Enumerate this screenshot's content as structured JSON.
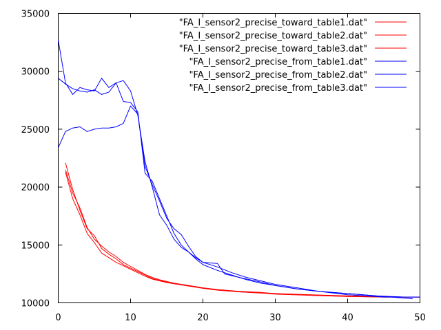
{
  "chart_data": {
    "type": "line",
    "title": "",
    "xlabel": "",
    "ylabel": "",
    "xlim": [
      0,
      50
    ],
    "ylim": [
      10000,
      35000
    ],
    "x_ticks": [
      "0",
      "10",
      "20",
      "30",
      "40",
      "50"
    ],
    "y_ticks": [
      "10000",
      "15000",
      "20000",
      "25000",
      "30000",
      "35000"
    ],
    "grid": false,
    "legend_position": "top-right",
    "colors": {
      "toward": "#ff0000",
      "from": "#0000ff"
    },
    "series": [
      {
        "name": "\"FA_I_sensor2_precise_toward_table1.dat\"",
        "color": "#ff0000",
        "points": [
          [
            1,
            22100
          ],
          [
            2,
            19800
          ],
          [
            3,
            18000
          ],
          [
            4,
            16400
          ],
          [
            5,
            15800
          ],
          [
            6,
            14700
          ],
          [
            7,
            14200
          ],
          [
            8,
            13800
          ],
          [
            9,
            13300
          ],
          [
            10,
            13000
          ],
          [
            11,
            12700
          ],
          [
            12,
            12400
          ],
          [
            13,
            12100
          ],
          [
            14,
            11950
          ],
          [
            15,
            11800
          ],
          [
            16,
            11700
          ],
          [
            17,
            11600
          ],
          [
            18,
            11500
          ],
          [
            19,
            11400
          ],
          [
            20,
            11300
          ],
          [
            22,
            11150
          ],
          [
            25,
            11000
          ],
          [
            28,
            10900
          ],
          [
            30,
            10800
          ],
          [
            35,
            10700
          ],
          [
            40,
            10600
          ],
          [
            45,
            10550
          ],
          [
            48,
            10500
          ]
        ]
      },
      {
        "name": "\"FA_I_sensor2_precise_toward_table2.dat\"",
        "color": "#ff0000",
        "points": [
          [
            1,
            21500
          ],
          [
            2,
            19500
          ],
          [
            3,
            18200
          ],
          [
            4,
            16500
          ],
          [
            5,
            15500
          ],
          [
            6,
            14900
          ],
          [
            7,
            14400
          ],
          [
            8,
            14000
          ],
          [
            9,
            13500
          ],
          [
            10,
            13150
          ],
          [
            11,
            12800
          ],
          [
            12,
            12450
          ],
          [
            13,
            12200
          ],
          [
            14,
            12000
          ],
          [
            15,
            11850
          ],
          [
            16,
            11700
          ],
          [
            17,
            11600
          ],
          [
            18,
            11500
          ],
          [
            19,
            11400
          ],
          [
            20,
            11250
          ],
          [
            22,
            11100
          ],
          [
            25,
            10950
          ],
          [
            28,
            10850
          ],
          [
            30,
            10800
          ],
          [
            35,
            10650
          ],
          [
            40,
            10550
          ],
          [
            45,
            10500
          ],
          [
            50,
            10500
          ]
        ]
      },
      {
        "name": "\"FA_I_sensor2_precise_toward_table3.dat\"",
        "color": "#ff0000",
        "points": [
          [
            1,
            21300
          ],
          [
            2,
            19000
          ],
          [
            3,
            17600
          ],
          [
            4,
            16000
          ],
          [
            5,
            15200
          ],
          [
            6,
            14300
          ],
          [
            7,
            13900
          ],
          [
            8,
            13500
          ],
          [
            9,
            13200
          ],
          [
            10,
            12900
          ],
          [
            11,
            12600
          ],
          [
            12,
            12300
          ],
          [
            13,
            12050
          ],
          [
            14,
            11900
          ],
          [
            15,
            11750
          ],
          [
            16,
            11650
          ],
          [
            17,
            11550
          ],
          [
            18,
            11450
          ],
          [
            19,
            11350
          ],
          [
            20,
            11250
          ],
          [
            22,
            11100
          ],
          [
            25,
            10950
          ],
          [
            28,
            10850
          ],
          [
            30,
            10750
          ],
          [
            35,
            10650
          ],
          [
            40,
            10550
          ],
          [
            45,
            10500
          ],
          [
            50,
            10500
          ]
        ]
      },
      {
        "name": "\"FA_I_sensor2_precise_from_table1.dat\"",
        "color": "#0000ff",
        "points": [
          [
            0,
            32700
          ],
          [
            1,
            29000
          ],
          [
            2,
            28000
          ],
          [
            3,
            28600
          ],
          [
            4,
            28400
          ],
          [
            5,
            28300
          ],
          [
            6,
            29400
          ],
          [
            7,
            28600
          ],
          [
            8,
            29000
          ],
          [
            9,
            27400
          ],
          [
            10,
            27300
          ],
          [
            11,
            26500
          ],
          [
            12,
            21200
          ],
          [
            13,
            20500
          ],
          [
            14,
            19000
          ],
          [
            15,
            17500
          ],
          [
            16,
            16000
          ],
          [
            17,
            15000
          ],
          [
            18,
            14400
          ],
          [
            19,
            13800
          ],
          [
            20,
            13300
          ],
          [
            22,
            12800
          ],
          [
            24,
            12400
          ],
          [
            26,
            12000
          ],
          [
            28,
            11700
          ],
          [
            30,
            11500
          ],
          [
            33,
            11200
          ],
          [
            36,
            11000
          ],
          [
            40,
            10800
          ],
          [
            44,
            10600
          ],
          [
            48,
            10500
          ],
          [
            50,
            10500
          ]
        ]
      },
      {
        "name": "\"FA_I_sensor2_precise_from_table2.dat\"",
        "color": "#0000ff",
        "points": [
          [
            0,
            29400
          ],
          [
            1,
            28900
          ],
          [
            2,
            28500
          ],
          [
            3,
            28300
          ],
          [
            4,
            28200
          ],
          [
            5,
            28400
          ],
          [
            6,
            28000
          ],
          [
            7,
            28200
          ],
          [
            8,
            29000
          ],
          [
            9,
            29200
          ],
          [
            10,
            28300
          ],
          [
            11,
            26200
          ],
          [
            12,
            22200
          ],
          [
            13,
            20000
          ],
          [
            14,
            17600
          ],
          [
            15,
            16700
          ],
          [
            16,
            15500
          ],
          [
            17,
            14800
          ],
          [
            18,
            14400
          ],
          [
            19,
            13900
          ],
          [
            20,
            13500
          ],
          [
            22,
            13100
          ],
          [
            24,
            12600
          ],
          [
            26,
            12200
          ],
          [
            28,
            11900
          ],
          [
            30,
            11600
          ],
          [
            33,
            11300
          ],
          [
            36,
            11000
          ],
          [
            40,
            10800
          ],
          [
            44,
            10600
          ],
          [
            48,
            10400
          ],
          [
            49,
            10350
          ]
        ]
      },
      {
        "name": "\"FA_I_sensor2_precise_from_table3.dat\"",
        "color": "#0000ff",
        "points": [
          [
            0,
            23400
          ],
          [
            1,
            24800
          ],
          [
            2,
            25100
          ],
          [
            3,
            25200
          ],
          [
            4,
            24800
          ],
          [
            5,
            25000
          ],
          [
            6,
            25100
          ],
          [
            7,
            25100
          ],
          [
            8,
            25200
          ],
          [
            9,
            25500
          ],
          [
            10,
            27000
          ],
          [
            11,
            26300
          ],
          [
            12,
            21800
          ],
          [
            13,
            20200
          ],
          [
            14,
            18800
          ],
          [
            15,
            17300
          ],
          [
            16,
            16400
          ],
          [
            17,
            15900
          ],
          [
            18,
            14900
          ],
          [
            19,
            14000
          ],
          [
            20,
            13500
          ],
          [
            22,
            13400
          ],
          [
            23,
            12500
          ],
          [
            25,
            12200
          ],
          [
            28,
            11800
          ],
          [
            30,
            11500
          ],
          [
            33,
            11200
          ],
          [
            36,
            11000
          ],
          [
            40,
            10700
          ],
          [
            45,
            10500
          ],
          [
            50,
            10500
          ]
        ]
      }
    ]
  }
}
